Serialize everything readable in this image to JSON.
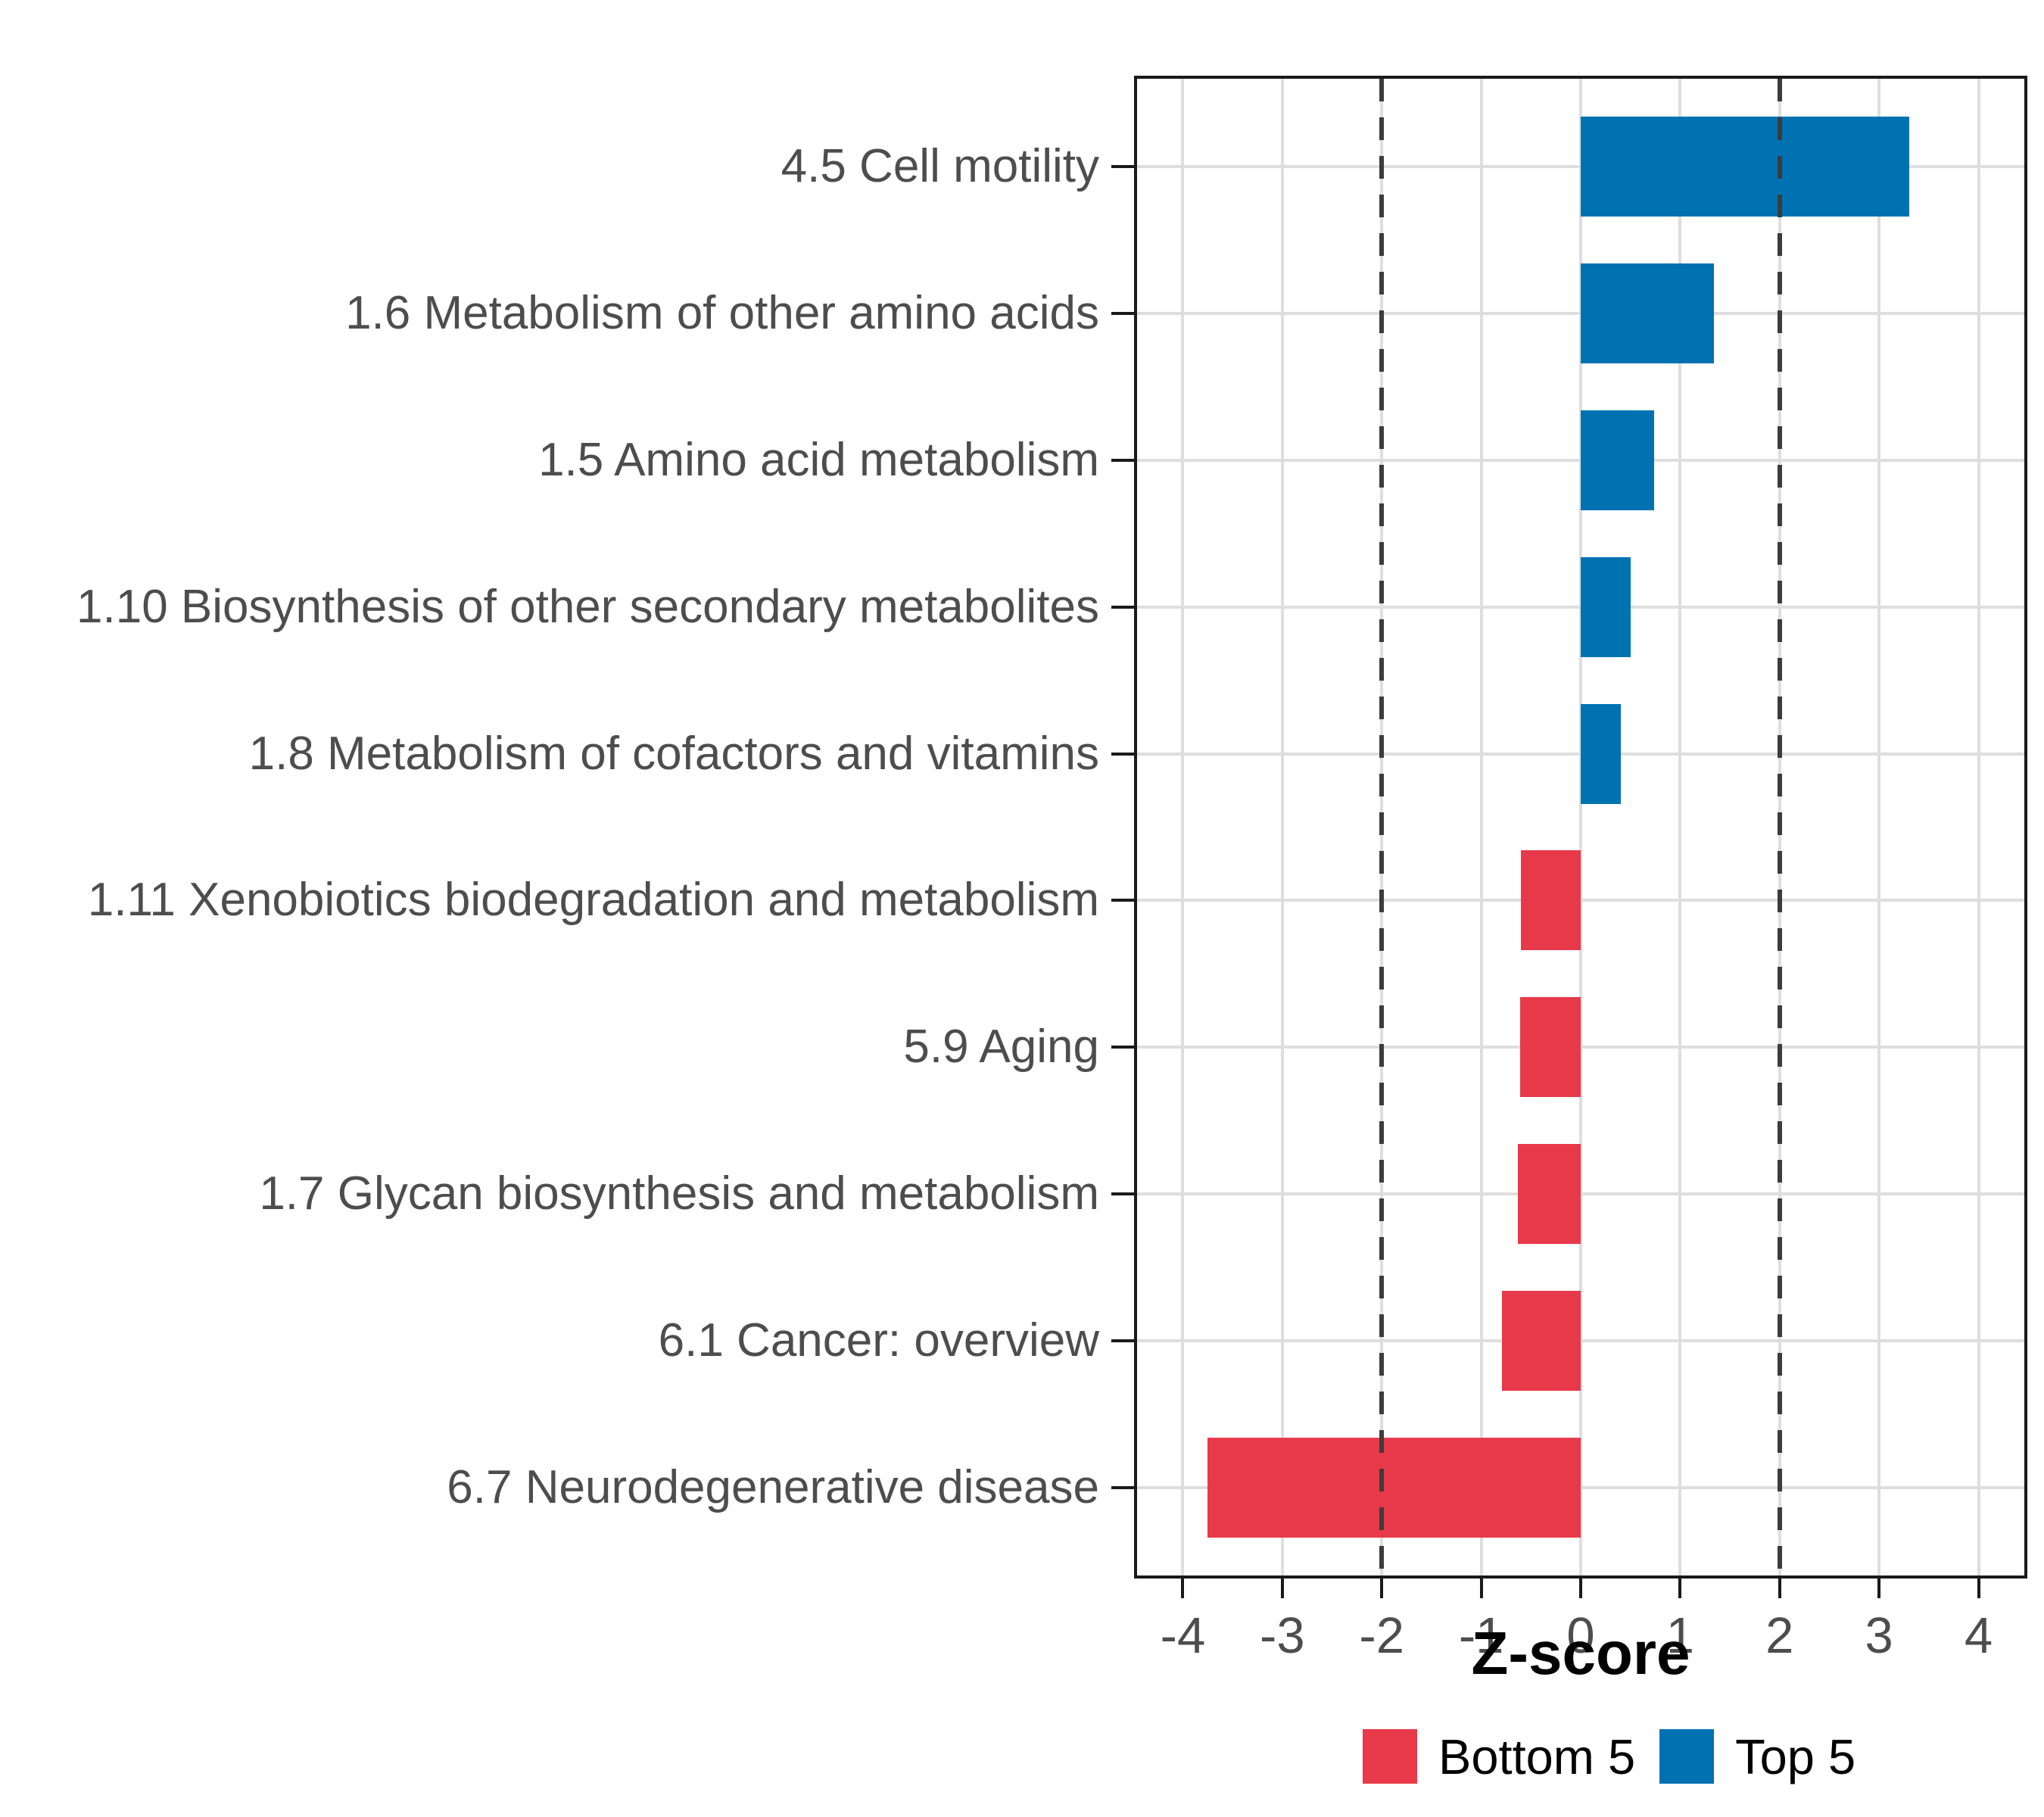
{
  "chart_data": {
    "type": "bar",
    "orientation": "horizontal",
    "title": "",
    "xlabel": "Z-score",
    "ylabel": "",
    "xlim": [
      -4.46,
      4.46
    ],
    "x_ticks": [
      -4,
      -3,
      -2,
      -1,
      0,
      1,
      2,
      3,
      4
    ],
    "x_tick_labels": [
      "-4",
      "-3",
      "-2",
      "-1",
      "0",
      "1",
      "2",
      "3",
      "4"
    ],
    "reference_lines": [
      -2,
      2
    ],
    "grid": "major-only",
    "legend_position": "bottom",
    "categories": [
      "4.5 Cell motility",
      "1.6 Metabolism of other amino acids",
      "1.5 Amino acid metabolism",
      "1.10 Biosynthesis of other secondary metabolites",
      "1.8 Metabolism of cofactors and vitamins",
      "1.11 Xenobiotics biodegradation and metabolism",
      "5.9 Aging",
      "1.7 Glycan biosynthesis and metabolism",
      "6.1 Cancer: overview",
      "6.7 Neurodegenerative disease"
    ],
    "values": [
      3.3,
      1.34,
      0.74,
      0.5,
      0.4,
      -0.6,
      -0.61,
      -0.63,
      -0.79,
      -3.75
    ],
    "groups": [
      "Top 5",
      "Top 5",
      "Top 5",
      "Top 5",
      "Top 5",
      "Bottom 5",
      "Bottom 5",
      "Bottom 5",
      "Bottom 5",
      "Bottom 5"
    ],
    "series": [
      {
        "name": "Bottom 5",
        "color": "#e8394a"
      },
      {
        "name": "Top 5",
        "color": "#0072b2"
      }
    ]
  },
  "axis": {
    "title": "Z-score"
  },
  "legend": {
    "items": [
      {
        "label": "Bottom 5",
        "color": "#e8394a"
      },
      {
        "label": "Top 5",
        "color": "#0072b2"
      }
    ]
  },
  "colors": {
    "bottom5": "#e8394a",
    "top5": "#0072b2",
    "gridline": "#dedede",
    "dashed_line": "#3c3c3c",
    "axis_text": "#4d4d4d",
    "panel_border": "#1a1a1a"
  }
}
